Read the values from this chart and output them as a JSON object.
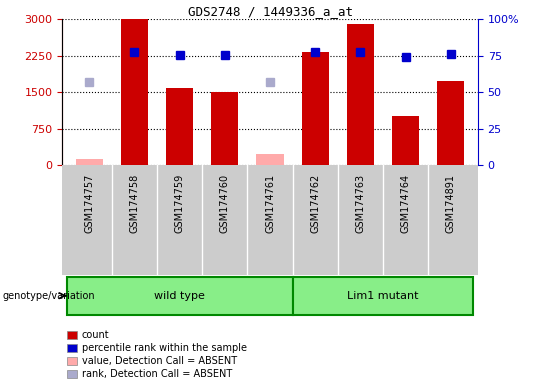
{
  "title": "GDS2748 / 1449336_a_at",
  "samples": [
    "GSM174757",
    "GSM174758",
    "GSM174759",
    "GSM174760",
    "GSM174761",
    "GSM174762",
    "GSM174763",
    "GSM174764",
    "GSM174891"
  ],
  "counts": [
    null,
    3000,
    1580,
    1510,
    null,
    2320,
    2900,
    1020,
    1720
  ],
  "counts_absent": [
    130,
    null,
    null,
    null,
    230,
    null,
    null,
    null,
    null
  ],
  "percentile_present": [
    null,
    77.7,
    75.7,
    75.3,
    null,
    77.3,
    77.3,
    74.3,
    76.0
  ],
  "percentile_absent": [
    57.0,
    null,
    null,
    null,
    57.3,
    null,
    null,
    null,
    null
  ],
  "wild_type_indices": [
    0,
    1,
    2,
    3,
    4
  ],
  "lim1_indices": [
    5,
    6,
    7,
    8
  ],
  "ylim_left": [
    0,
    3000
  ],
  "ylim_right": [
    0,
    100
  ],
  "yticks_left": [
    0,
    750,
    1500,
    2250,
    3000
  ],
  "yticks_right": [
    0,
    25,
    50,
    75,
    100
  ],
  "bar_color": "#cc0000",
  "bar_absent_color": "#ffaaaa",
  "rank_color": "#0000cc",
  "rank_absent_color": "#aaaacc",
  "wild_type_color": "#88ee88",
  "lim1_color": "#88ee88",
  "group_border_color": "#008800",
  "sample_bg_color": "#cccccc",
  "legend_items": [
    {
      "label": "count",
      "color": "#cc0000"
    },
    {
      "label": "percentile rank within the sample",
      "color": "#0000cc"
    },
    {
      "label": "value, Detection Call = ABSENT",
      "color": "#ffaaaa"
    },
    {
      "label": "rank, Detection Call = ABSENT",
      "color": "#aaaacc"
    }
  ]
}
